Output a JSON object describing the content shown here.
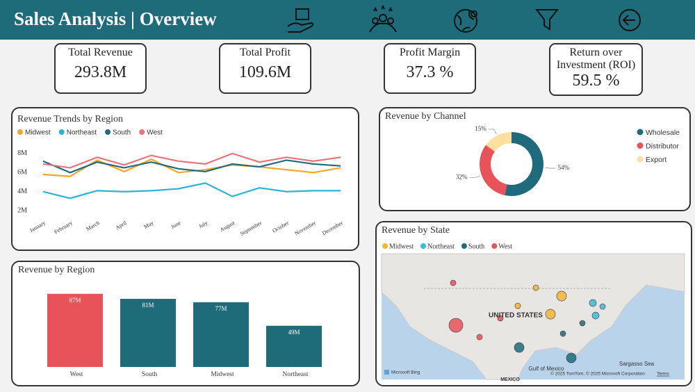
{
  "header": {
    "title": "Sales Analysis | Overview"
  },
  "kpis": [
    {
      "label": "Total Revenue",
      "value": "293.8M"
    },
    {
      "label": "Total Profit",
      "value": "109.6M"
    },
    {
      "label": "Profit Margin",
      "value": "37.3 %"
    },
    {
      "label": "Return over Investment (ROI)",
      "value": "59.5 %"
    }
  ],
  "chart_data": [
    {
      "type": "line",
      "title": "Revenue Trends by Region",
      "categories": [
        "January",
        "February",
        "March",
        "April",
        "May",
        "June",
        "July",
        "August",
        "September",
        "October",
        "November",
        "December"
      ],
      "series": [
        {
          "name": "Midwest",
          "color": "#f5a623",
          "values": [
            5800000,
            5600000,
            7300000,
            6100000,
            7400000,
            6000000,
            6300000,
            6800000,
            6600000,
            6300000,
            6000000,
            6500000
          ]
        },
        {
          "name": "Northeast",
          "color": "#2bb3d6",
          "values": [
            4000000,
            3300000,
            4100000,
            4000000,
            4100000,
            4300000,
            4900000,
            3500000,
            4400000,
            4000000,
            4100000,
            4100000
          ]
        },
        {
          "name": "South",
          "color": "#1f6b7d",
          "values": [
            7200000,
            6000000,
            7100000,
            6500000,
            7100000,
            6400000,
            6100000,
            6900000,
            6600000,
            7300000,
            6900000,
            6700000
          ]
        },
        {
          "name": "West",
          "color": "#e8737a",
          "values": [
            6900000,
            6500000,
            7600000,
            6800000,
            7800000,
            7200000,
            6900000,
            8000000,
            7100000,
            7600000,
            7200000,
            7600000
          ]
        }
      ],
      "ylim": [
        1500000,
        8500000
      ],
      "yticks": [
        {
          "value": 2000000,
          "label": "2M"
        },
        {
          "value": 4000000,
          "label": "4M"
        },
        {
          "value": 6000000,
          "label": "6M"
        },
        {
          "value": 8000000,
          "label": "8M"
        }
      ],
      "grid": false,
      "legend": "top-left"
    },
    {
      "type": "donut",
      "title": "Revenue by Channel",
      "categories": [
        "Wholesale",
        "Distributor",
        "Export"
      ],
      "values": [
        54,
        32,
        15
      ],
      "value_labels": [
        "54%",
        "32%",
        "15%"
      ],
      "colors": [
        "#1f6b7d",
        "#e8535a",
        "#fde0a0"
      ],
      "legend": "right"
    },
    {
      "type": "bar",
      "title": "Revenue by Region",
      "categories": [
        "West",
        "South",
        "Midwest",
        "Northeast"
      ],
      "values": [
        87,
        81,
        77,
        49
      ],
      "value_labels": [
        "87M",
        "81M",
        "77M",
        "49M"
      ],
      "colors": [
        "#e8535a",
        "#1e6b7a",
        "#1e6b7a",
        "#1e6b7a"
      ]
    },
    {
      "type": "map",
      "title": "Revenue by State",
      "series": [
        {
          "name": "Midwest",
          "color": "#f5b731"
        },
        {
          "name": "Northeast",
          "color": "#3bbbdc"
        },
        {
          "name": "South",
          "color": "#1f6b7d"
        },
        {
          "name": "West",
          "color": "#e8535a"
        }
      ],
      "labels": [
        "UNITED STATES",
        "Gulf of Mexico",
        "Sargasso Sea",
        "MEXICO"
      ],
      "attribution": "© 2025 TomTom, © 2025 Microsoft Corporation",
      "terms": "Terms",
      "provider": "Microsoft Bing",
      "legend": "top-left"
    }
  ]
}
